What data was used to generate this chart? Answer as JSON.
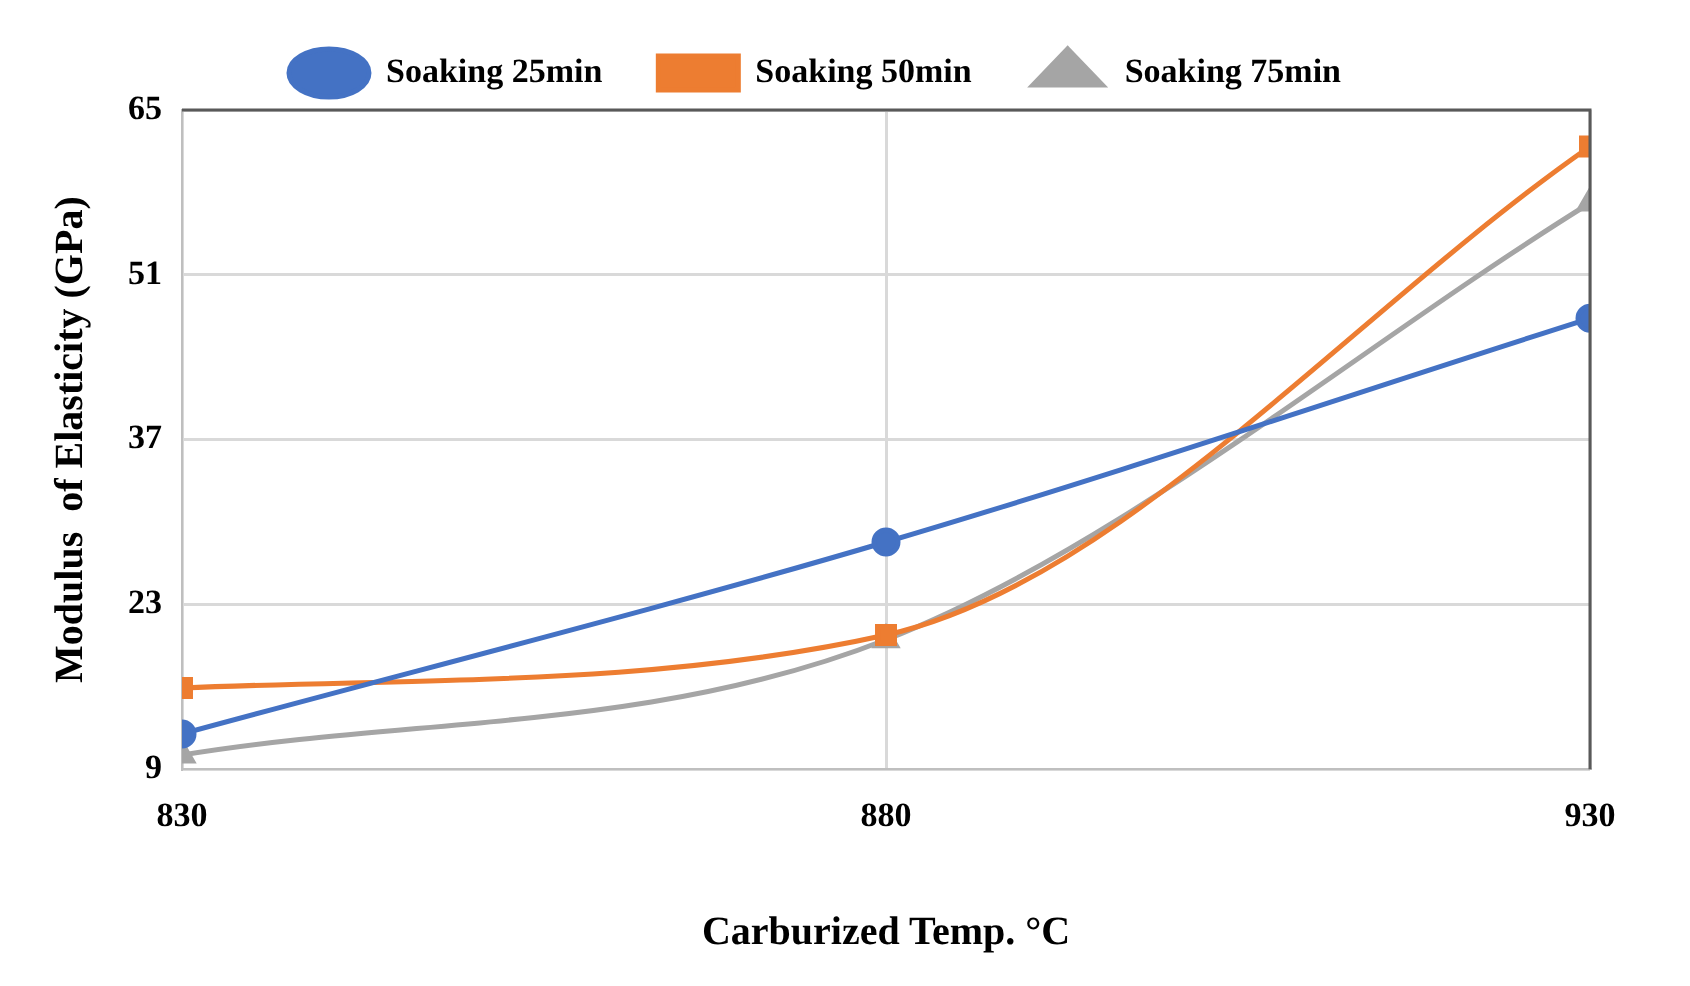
{
  "chart_data": {
    "type": "line",
    "xlabel": "Carburized Temp. °C",
    "ylabel": "Modulus  of Elasticity (GPa)",
    "x": [
      830,
      880,
      930
    ],
    "xlim": [
      830,
      930
    ],
    "xticks": [
      830,
      880,
      930
    ],
    "ylim": [
      9,
      65
    ],
    "yticks": [
      9,
      23,
      37,
      51,
      65
    ],
    "grid": true,
    "legend": "top",
    "line_style": "solid",
    "series": [
      {
        "name": "Soaking 25min",
        "color": "#4472c4",
        "marker": "circle",
        "values": [
          12,
          28.3,
          47.3
        ]
      },
      {
        "name": "Soaking 50min",
        "color": "#ed7d31",
        "marker": "square",
        "values": [
          15.9,
          20.4,
          61.9
        ]
      },
      {
        "name": "Soaking 75min",
        "color": "#a5a5a5",
        "marker": "triangle",
        "values": [
          10.2,
          20,
          57.1
        ]
      }
    ]
  }
}
